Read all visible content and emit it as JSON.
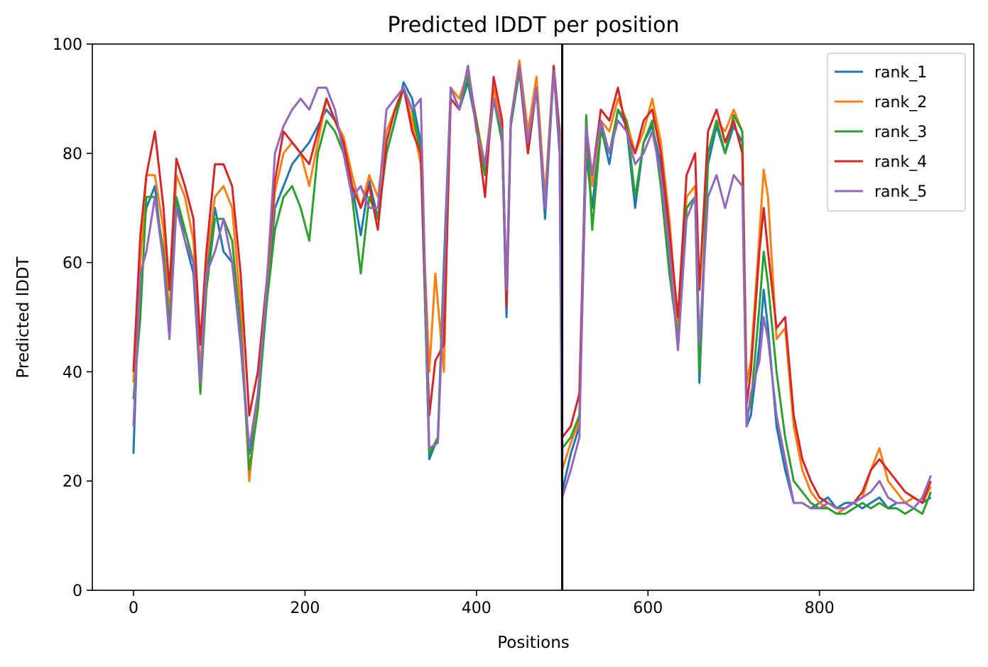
{
  "chart_data": {
    "type": "line",
    "title": "Predicted lDDT per position",
    "xlabel": "Positions",
    "ylabel": "Predicted lDDT",
    "xlim": [
      -48,
      980
    ],
    "ylim": [
      0,
      100
    ],
    "xticks": [
      0,
      200,
      400,
      600,
      800
    ],
    "yticks": [
      0,
      20,
      40,
      60,
      80,
      100
    ],
    "grid": false,
    "legend_position": "top-right",
    "vline_x": 500,
    "vline_color": "#000000",
    "series": [
      {
        "name": "rank_1",
        "color": "#1f77b4",
        "x": [
          0,
          8,
          15,
          25,
          35,
          42,
          50,
          60,
          70,
          78,
          85,
          95,
          105,
          115,
          125,
          135,
          145,
          155,
          165,
          175,
          185,
          195,
          205,
          215,
          225,
          235,
          245,
          255,
          265,
          275,
          285,
          295,
          305,
          315,
          325,
          335,
          345,
          355,
          362,
          370,
          380,
          390,
          400,
          410,
          420,
          430,
          435,
          440,
          450,
          460,
          470,
          480,
          490,
          497,
          500,
          510,
          520,
          528,
          535,
          545,
          555,
          565,
          575,
          585,
          595,
          605,
          615,
          625,
          635,
          645,
          655,
          660,
          670,
          680,
          690,
          700,
          710,
          715,
          720,
          730,
          735,
          740,
          750,
          760,
          770,
          780,
          790,
          800,
          810,
          820,
          830,
          840,
          850,
          860,
          870,
          880,
          890,
          900,
          910,
          920,
          930
        ],
        "values": [
          25,
          62,
          70,
          74,
          60,
          47,
          72,
          64,
          58,
          37,
          58,
          70,
          62,
          60,
          45,
          25,
          34,
          52,
          70,
          74,
          78,
          80,
          82,
          85,
          88,
          86,
          82,
          74,
          65,
          75,
          68,
          80,
          86,
          93,
          90,
          82,
          24,
          28,
          60,
          92,
          88,
          93,
          85,
          76,
          90,
          82,
          50,
          85,
          95,
          80,
          92,
          68,
          95,
          80,
          18,
          25,
          30,
          80,
          70,
          85,
          78,
          88,
          85,
          70,
          82,
          85,
          78,
          62,
          44,
          70,
          72,
          38,
          78,
          85,
          80,
          85,
          82,
          30,
          32,
          45,
          55,
          48,
          30,
          22,
          16,
          16,
          15,
          16,
          17,
          15,
          16,
          16,
          15,
          16,
          17,
          15,
          16,
          16,
          17,
          16,
          17
        ]
      },
      {
        "name": "rank_2",
        "color": "#ff7f0e",
        "x": [
          0,
          8,
          15,
          25,
          35,
          42,
          50,
          60,
          70,
          78,
          85,
          95,
          105,
          115,
          125,
          135,
          145,
          155,
          165,
          175,
          185,
          195,
          205,
          215,
          225,
          235,
          245,
          255,
          265,
          275,
          285,
          295,
          305,
          315,
          325,
          335,
          345,
          352,
          362,
          370,
          380,
          390,
          400,
          410,
          420,
          430,
          435,
          440,
          450,
          460,
          470,
          480,
          490,
          497,
          500,
          510,
          520,
          528,
          535,
          545,
          555,
          565,
          575,
          585,
          595,
          605,
          615,
          625,
          635,
          645,
          655,
          660,
          670,
          680,
          690,
          700,
          710,
          715,
          720,
          730,
          735,
          740,
          750,
          760,
          770,
          780,
          790,
          800,
          810,
          820,
          830,
          840,
          850,
          860,
          870,
          880,
          890,
          900,
          910,
          920,
          930
        ],
        "values": [
          38,
          60,
          76,
          76,
          66,
          50,
          76,
          72,
          64,
          40,
          60,
          72,
          74,
          70,
          52,
          20,
          35,
          55,
          73,
          80,
          82,
          80,
          74,
          82,
          90,
          86,
          83,
          76,
          70,
          76,
          72,
          84,
          88,
          92,
          86,
          78,
          40,
          58,
          40,
          92,
          90,
          95,
          86,
          78,
          92,
          84,
          54,
          86,
          97,
          84,
          94,
          72,
          96,
          82,
          22,
          27,
          31,
          82,
          74,
          86,
          84,
          90,
          86,
          80,
          84,
          90,
          82,
          68,
          48,
          72,
          74,
          42,
          80,
          86,
          84,
          88,
          84,
          38,
          42,
          65,
          77,
          72,
          46,
          48,
          30,
          22,
          18,
          16,
          15,
          14,
          15,
          16,
          17,
          22,
          26,
          20,
          18,
          16,
          17,
          16,
          19
        ]
      },
      {
        "name": "rank_3",
        "color": "#2ca02c",
        "x": [
          0,
          8,
          15,
          25,
          35,
          42,
          50,
          60,
          70,
          78,
          85,
          95,
          105,
          115,
          125,
          135,
          145,
          155,
          165,
          175,
          185,
          195,
          205,
          215,
          225,
          235,
          245,
          255,
          265,
          275,
          285,
          295,
          305,
          315,
          325,
          335,
          345,
          355,
          362,
          370,
          380,
          390,
          400,
          410,
          420,
          430,
          435,
          440,
          450,
          460,
          470,
          480,
          490,
          497,
          500,
          510,
          520,
          528,
          535,
          545,
          555,
          565,
          575,
          585,
          595,
          605,
          615,
          625,
          635,
          645,
          655,
          660,
          670,
          680,
          690,
          700,
          710,
          715,
          720,
          730,
          735,
          740,
          750,
          760,
          770,
          780,
          790,
          800,
          810,
          820,
          830,
          840,
          850,
          860,
          870,
          880,
          890,
          900,
          910,
          920,
          930
        ],
        "values": [
          35,
          50,
          72,
          72,
          62,
          48,
          72,
          66,
          60,
          36,
          55,
          68,
          68,
          64,
          48,
          22,
          33,
          52,
          66,
          72,
          74,
          70,
          64,
          80,
          86,
          84,
          80,
          72,
          58,
          72,
          68,
          80,
          86,
          92,
          88,
          80,
          25,
          28,
          58,
          92,
          88,
          94,
          86,
          76,
          90,
          82,
          52,
          85,
          95,
          82,
          92,
          70,
          95,
          82,
          26,
          28,
          32,
          87,
          66,
          84,
          80,
          88,
          86,
          72,
          82,
          86,
          74,
          58,
          46,
          70,
          72,
          40,
          80,
          86,
          80,
          87,
          84,
          32,
          34,
          52,
          62,
          56,
          40,
          28,
          20,
          18,
          16,
          15,
          15,
          14,
          14,
          15,
          16,
          15,
          16,
          15,
          15,
          14,
          15,
          14,
          18
        ]
      },
      {
        "name": "rank_4",
        "color": "#d62728",
        "x": [
          0,
          8,
          15,
          25,
          35,
          42,
          50,
          60,
          70,
          78,
          85,
          95,
          105,
          115,
          125,
          135,
          145,
          155,
          165,
          175,
          185,
          195,
          205,
          215,
          225,
          235,
          245,
          255,
          265,
          275,
          285,
          295,
          305,
          315,
          325,
          335,
          345,
          352,
          362,
          370,
          380,
          390,
          400,
          410,
          420,
          430,
          435,
          440,
          450,
          460,
          470,
          480,
          490,
          497,
          500,
          510,
          520,
          528,
          535,
          545,
          555,
          565,
          575,
          585,
          595,
          605,
          615,
          625,
          635,
          645,
          655,
          660,
          670,
          680,
          690,
          700,
          710,
          715,
          720,
          730,
          735,
          740,
          750,
          760,
          770,
          780,
          790,
          800,
          810,
          820,
          830,
          840,
          850,
          860,
          870,
          880,
          890,
          900,
          910,
          920,
          930
        ],
        "values": [
          40,
          65,
          76,
          84,
          70,
          55,
          79,
          74,
          68,
          45,
          62,
          78,
          78,
          74,
          58,
          32,
          40,
          56,
          75,
          84,
          82,
          80,
          78,
          84,
          90,
          86,
          82,
          74,
          70,
          74,
          66,
          82,
          88,
          92,
          84,
          80,
          32,
          42,
          45,
          90,
          88,
          96,
          85,
          72,
          94,
          86,
          52,
          86,
          96,
          80,
          92,
          70,
          96,
          84,
          28,
          30,
          36,
          84,
          76,
          88,
          86,
          92,
          84,
          80,
          86,
          88,
          80,
          66,
          50,
          76,
          80,
          55,
          84,
          88,
          82,
          86,
          80,
          34,
          40,
          62,
          70,
          62,
          48,
          50,
          32,
          24,
          20,
          17,
          16,
          15,
          15,
          16,
          18,
          22,
          24,
          22,
          20,
          18,
          17,
          16,
          20
        ]
      },
      {
        "name": "rank_5",
        "color": "#9467bd",
        "x": [
          0,
          8,
          15,
          25,
          35,
          42,
          50,
          60,
          70,
          78,
          85,
          95,
          105,
          115,
          125,
          135,
          145,
          155,
          165,
          175,
          185,
          195,
          205,
          215,
          225,
          235,
          245,
          255,
          265,
          275,
          285,
          295,
          305,
          315,
          325,
          335,
          345,
          355,
          362,
          370,
          380,
          390,
          400,
          410,
          420,
          430,
          435,
          440,
          450,
          460,
          470,
          480,
          490,
          497,
          500,
          510,
          520,
          528,
          535,
          545,
          555,
          565,
          575,
          585,
          595,
          605,
          615,
          625,
          635,
          645,
          655,
          660,
          670,
          680,
          690,
          700,
          710,
          715,
          720,
          730,
          735,
          740,
          750,
          760,
          770,
          780,
          790,
          800,
          810,
          820,
          830,
          840,
          850,
          860,
          870,
          880,
          890,
          900,
          910,
          920,
          930
        ],
        "values": [
          30,
          58,
          62,
          72,
          60,
          46,
          70,
          64,
          60,
          38,
          58,
          62,
          68,
          60,
          46,
          26,
          36,
          55,
          80,
          85,
          88,
          90,
          88,
          92,
          92,
          88,
          80,
          72,
          74,
          70,
          70,
          88,
          90,
          92,
          88,
          90,
          26,
          27,
          56,
          92,
          88,
          96,
          84,
          78,
          90,
          84,
          55,
          86,
          96,
          82,
          92,
          70,
          95,
          82,
          17,
          22,
          28,
          85,
          76,
          86,
          80,
          86,
          84,
          78,
          80,
          84,
          76,
          62,
          44,
          68,
          72,
          45,
          72,
          76,
          70,
          76,
          74,
          30,
          36,
          42,
          50,
          46,
          32,
          24,
          16,
          16,
          15,
          15,
          16,
          15,
          15,
          16,
          17,
          18,
          20,
          17,
          16,
          16,
          15,
          17,
          21
        ]
      }
    ]
  }
}
